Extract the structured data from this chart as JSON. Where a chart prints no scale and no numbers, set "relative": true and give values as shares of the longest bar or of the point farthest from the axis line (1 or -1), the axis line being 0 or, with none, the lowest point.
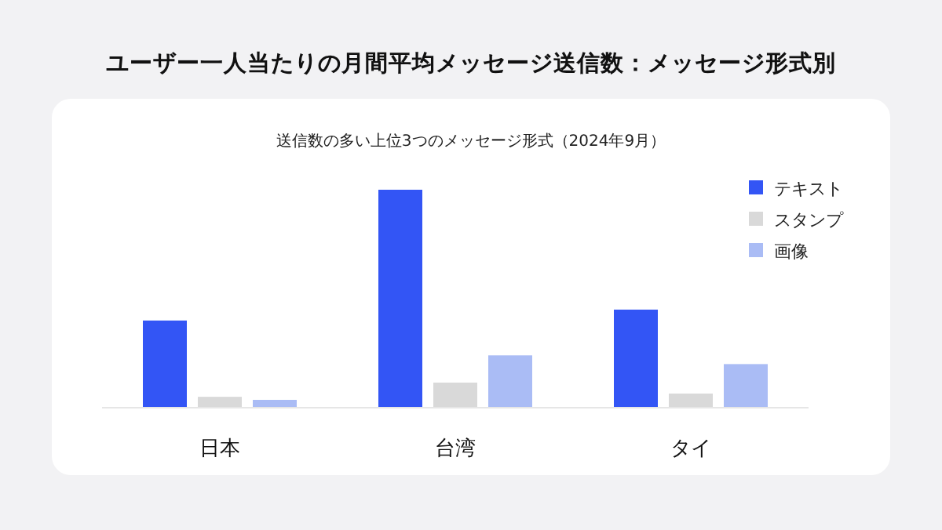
{
  "chart_data": {
    "type": "bar",
    "title": "ユーザー一人当たりの月間平均メッセージ送信数：メッセージ形式別",
    "subtitle": "送信数の多い上位3つのメッセージ形式（2024年9月）",
    "categories": [
      "日本",
      "台湾",
      "タイ"
    ],
    "relative": true,
    "legend": "top right",
    "tick_labels": "x",
    "series": [
      {
        "name": "テキスト",
        "color": "#3355f5",
        "values": [
          0.4,
          1,
          0.45
        ]
      },
      {
        "name": "スタンプ",
        "color": "#d9d9d9",
        "values": [
          0.05,
          0.115,
          0.065
        ]
      },
      {
        "name": "画像",
        "color": "#aabcf5",
        "values": [
          0.036,
          0.24,
          0.2
        ]
      }
    ]
  }
}
